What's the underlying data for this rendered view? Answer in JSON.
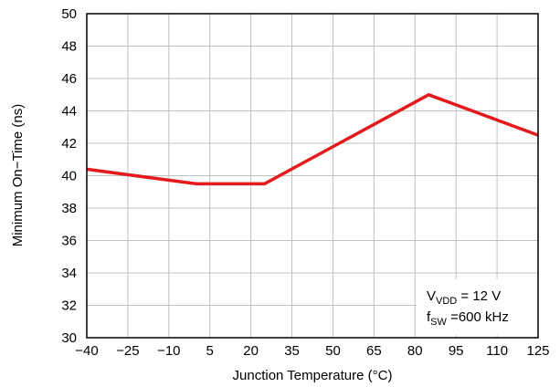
{
  "chart_data": {
    "type": "line",
    "xlabel": "Junction Temperature (°C)",
    "ylabel": "Minimum On−Time (ns)",
    "x_ticks": [
      "−40",
      "−25",
      "−10",
      "5",
      "20",
      "35",
      "50",
      "65",
      "80",
      "95",
      "110",
      "125"
    ],
    "y_ticks": [
      "30",
      "32",
      "34",
      "36",
      "38",
      "40",
      "42",
      "44",
      "46",
      "48",
      "50"
    ],
    "xlim": [
      -40,
      125
    ],
    "ylim": [
      30,
      50
    ],
    "grid": true,
    "series": [
      {
        "color": "#e41a1c",
        "x": [
          -40,
          0,
          25,
          85,
          125
        ],
        "y": [
          40.4,
          39.5,
          39.5,
          45.0,
          42.5
        ]
      }
    ],
    "annotation": {
      "line1_main": "V",
      "line1_sub": "VDD",
      "line1_rest": " = 12 V",
      "line2_main": "f",
      "line2_sub": "SW",
      "line2_rest": " =600 kHz"
    },
    "legend_position": "bottom-right"
  }
}
